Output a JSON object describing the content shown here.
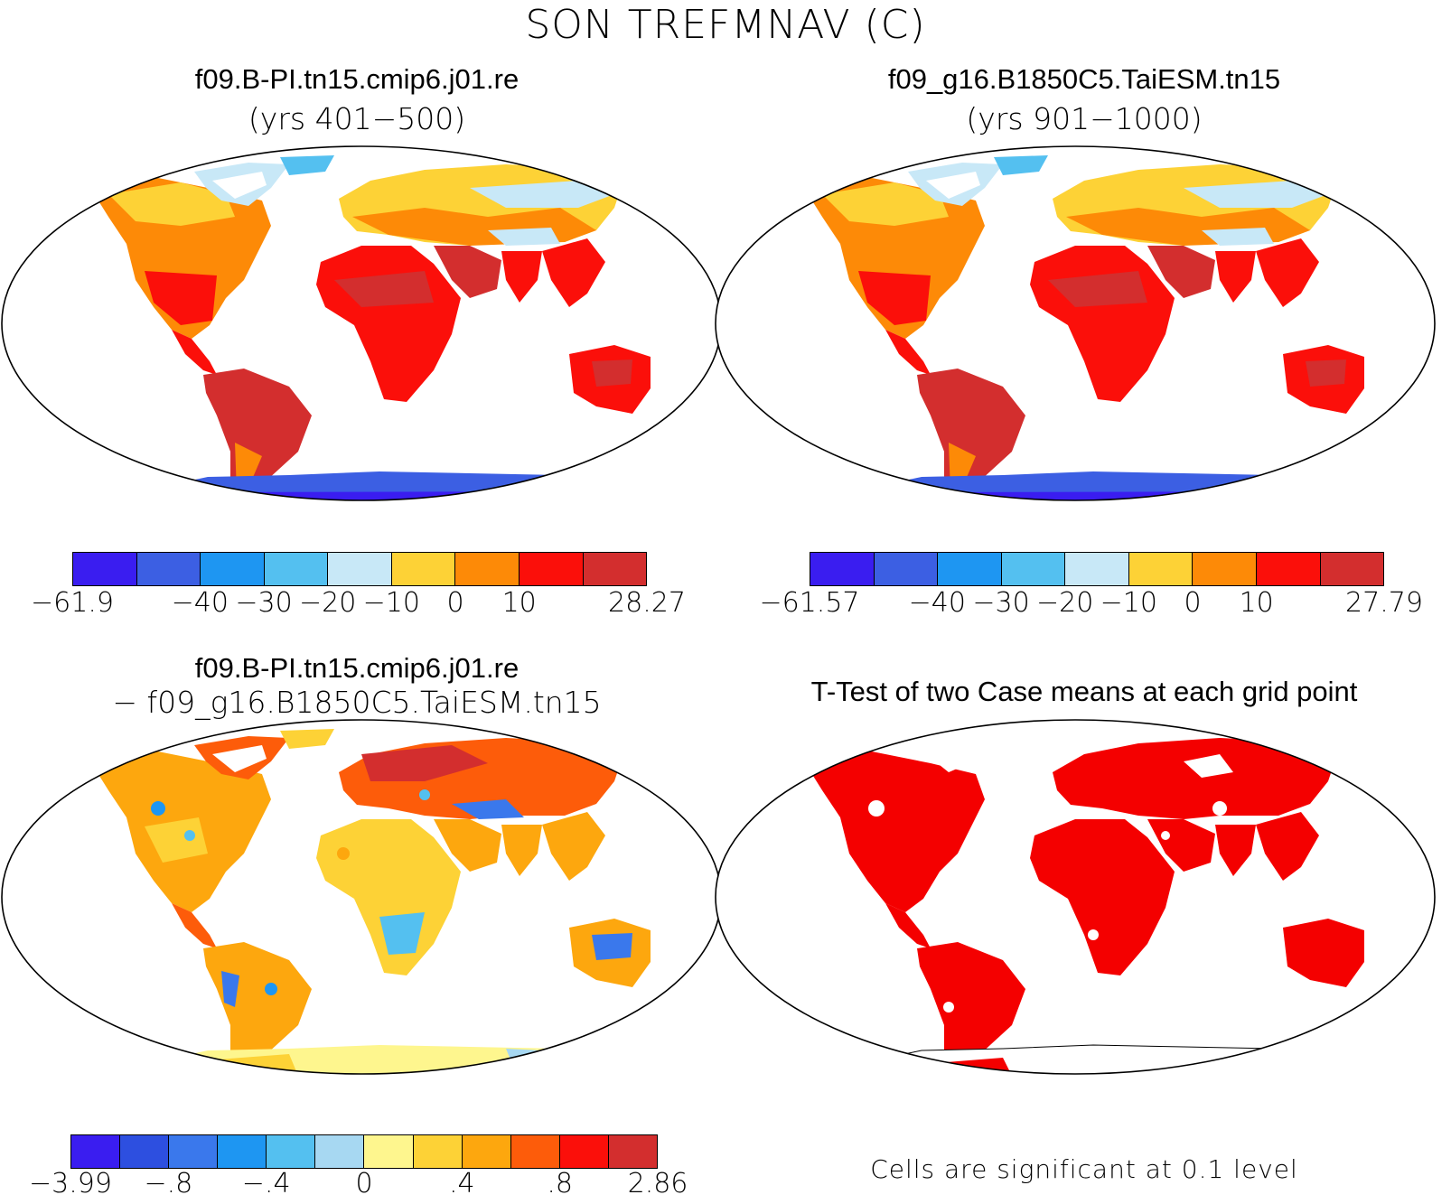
{
  "figure": {
    "title": "SON TREFMNAV (C)"
  },
  "panels": {
    "case1": {
      "title": "f09.B-PI.tn15.cmip6.j01.re",
      "subtitle": "(yrs 401−500)",
      "colorbar": {
        "colors": [
          "#3a1df0",
          "#3c5fe3",
          "#1e96f2",
          "#54c0f0",
          "#c8e8f7",
          "#fdd236",
          "#fd8a07",
          "#fb0f0a",
          "#d32e2e"
        ],
        "tick_labels": [
          "−61.9",
          "−40",
          "−30",
          "−20",
          "−10",
          "0",
          "10",
          "28.27"
        ]
      }
    },
    "case2": {
      "title": "f09_g16.B1850C5.TaiESM.tn15",
      "subtitle": "(yrs 901−1000)",
      "colorbar": {
        "colors": [
          "#3a1df0",
          "#3c5fe3",
          "#1e96f2",
          "#54c0f0",
          "#c8e8f7",
          "#fdd236",
          "#fd8a07",
          "#fb0f0a",
          "#d32e2e"
        ],
        "tick_labels": [
          "−61.57",
          "−40",
          "−30",
          "−20",
          "−10",
          "0",
          "10",
          "27.79"
        ]
      }
    },
    "diff": {
      "title": "f09.B-PI.tn15.cmip6.j01.re",
      "subtitle": "− f09_g16.B1850C5.TaiESM.tn15",
      "colorbar": {
        "colors": [
          "#3a1df0",
          "#2d4fe0",
          "#3a78ec",
          "#1e96f2",
          "#54c0f0",
          "#a7d8f2",
          "#fef68e",
          "#fdd236",
          "#fda70e",
          "#fd5c0a",
          "#fb0f0a",
          "#d32e2e"
        ],
        "tick_labels": [
          "−3.99",
          "−.8",
          "−.4",
          "0",
          ".4",
          ".8",
          "2.86"
        ]
      }
    },
    "ttest": {
      "title": "T-Test of two Case means at each grid point",
      "note": "Cells are significant at 0.1 level",
      "significant_color": "#f40000"
    }
  }
}
